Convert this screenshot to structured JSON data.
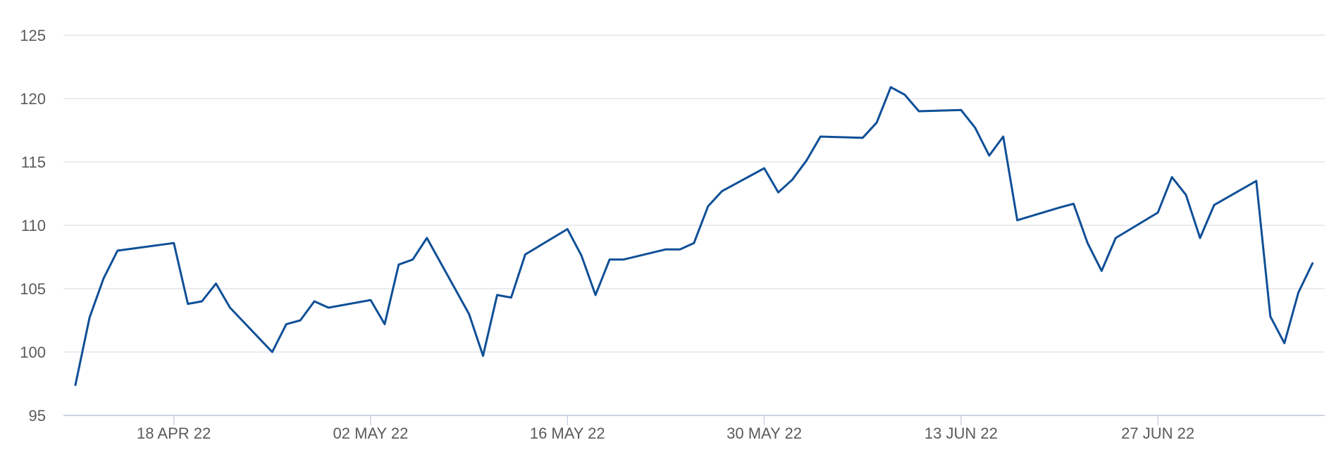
{
  "chart_data": {
    "type": "line",
    "title": "",
    "xlabel": "",
    "ylabel": "",
    "ylim": [
      95,
      125
    ],
    "yticks": [
      95,
      100,
      105,
      110,
      115,
      120,
      125
    ],
    "xlim": [
      "2022-04-11",
      "2022-07-08"
    ],
    "xticks": [
      {
        "date": "2022-04-18",
        "label": "18 APR 22"
      },
      {
        "date": "2022-05-02",
        "label": "02 MAY 22"
      },
      {
        "date": "2022-05-16",
        "label": "16 MAY 22"
      },
      {
        "date": "2022-05-30",
        "label": "30 MAY 22"
      },
      {
        "date": "2022-06-13",
        "label": "13 JUN 22"
      },
      {
        "date": "2022-06-27",
        "label": "27 JUN 22"
      }
    ],
    "grid": "horizontal",
    "line_color": "#0f4f97",
    "series": [
      {
        "x": [
          "2022-04-11",
          "2022-04-12",
          "2022-04-13",
          "2022-04-14",
          "2022-04-18",
          "2022-04-19",
          "2022-04-20",
          "2022-04-21",
          "2022-04-22",
          "2022-04-25",
          "2022-04-26",
          "2022-04-27",
          "2022-04-28",
          "2022-04-29",
          "2022-05-02",
          "2022-05-03",
          "2022-05-04",
          "2022-05-05",
          "2022-05-06",
          "2022-05-09",
          "2022-05-10",
          "2022-05-11",
          "2022-05-12",
          "2022-05-13",
          "2022-05-16",
          "2022-05-17",
          "2022-05-18",
          "2022-05-19",
          "2022-05-20",
          "2022-05-23",
          "2022-05-24",
          "2022-05-25",
          "2022-05-26",
          "2022-05-27",
          "2022-05-30",
          "2022-05-31",
          "2022-06-01",
          "2022-06-02",
          "2022-06-03",
          "2022-06-06",
          "2022-06-07",
          "2022-06-08",
          "2022-06-09",
          "2022-06-10",
          "2022-06-13",
          "2022-06-14",
          "2022-06-15",
          "2022-06-16",
          "2022-06-17",
          "2022-06-20",
          "2022-06-21",
          "2022-06-22",
          "2022-06-23",
          "2022-06-24",
          "2022-06-27",
          "2022-06-28",
          "2022-06-29",
          "2022-06-30",
          "2022-07-01",
          "2022-07-04",
          "2022-07-05",
          "2022-07-06",
          "2022-07-07",
          "2022-07-08"
        ],
        "y": [
          97.4,
          102.7,
          105.8,
          108.0,
          108.6,
          103.8,
          104.0,
          105.4,
          103.5,
          100.0,
          102.2,
          102.5,
          104.0,
          103.5,
          104.1,
          102.2,
          106.9,
          107.3,
          109.0,
          103.0,
          99.7,
          104.5,
          104.3,
          107.7,
          109.7,
          107.6,
          104.5,
          107.3,
          107.3,
          108.1,
          108.1,
          108.6,
          111.5,
          112.7,
          114.5,
          112.6,
          113.6,
          115.1,
          117.0,
          116.9,
          118.1,
          120.9,
          120.3,
          119.0,
          119.1,
          117.7,
          115.5,
          117.0,
          110.4,
          111.4,
          111.7,
          108.6,
          106.4,
          109.0,
          111.0,
          113.8,
          112.4,
          109.0,
          111.6,
          113.5,
          102.8,
          100.7,
          104.7,
          107.0
        ]
      }
    ]
  }
}
